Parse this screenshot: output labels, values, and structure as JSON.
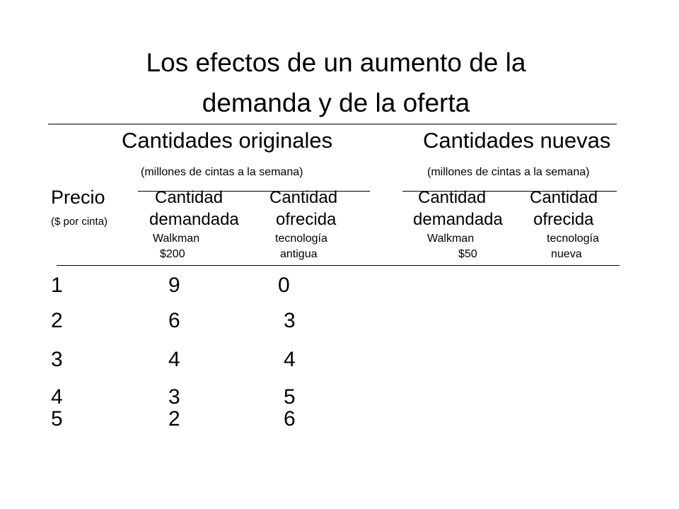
{
  "title": {
    "line1": "Los efectos de un aumento de la",
    "line2": "demanda y de la oferta"
  },
  "groups": {
    "original": {
      "label": "Cantidades originales",
      "units": "(millones de cintas a la semana)"
    },
    "new": {
      "label": "Cantidades nuevas",
      "units": "(millones de cintas a la semana)"
    }
  },
  "columns": {
    "price": {
      "label": "Precio",
      "sub": "($ por cinta)"
    },
    "orig_demand": {
      "l1": "Cantidad",
      "l2": "demandada",
      "l3": "Walkman",
      "l4": "$200"
    },
    "orig_supply": {
      "l1": "Cantidad",
      "l2": "ofrecida",
      "l3": "tecnología",
      "l4": "antigua"
    },
    "new_demand": {
      "l1": "Cantidad",
      "l2": "demandada",
      "l3": "Walkman",
      "l4": "$50"
    },
    "new_supply": {
      "l1": "Cantidad",
      "l2": "ofrecida",
      "l3": "tecnología",
      "l4": "nueva"
    }
  },
  "rows": [
    {
      "price": "1",
      "demanded": "9",
      "supplied": "0"
    },
    {
      "price": "2",
      "demanded": "6",
      "supplied": "3"
    },
    {
      "price": "3",
      "demanded": "4",
      "supplied": "4"
    },
    {
      "price": "4",
      "demanded": "3",
      "supplied": "5"
    },
    {
      "price": "5",
      "demanded": "2",
      "supplied": "6"
    }
  ]
}
